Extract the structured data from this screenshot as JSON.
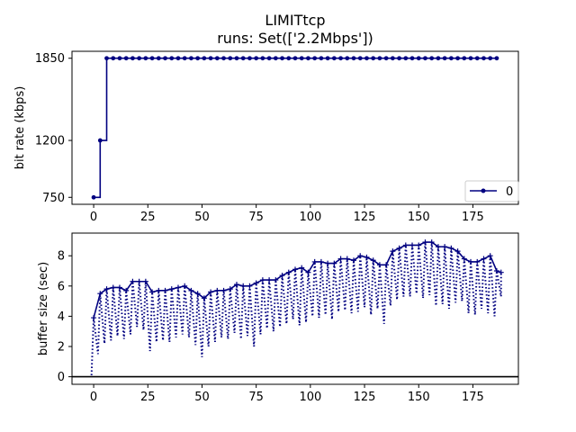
{
  "chart_data": [
    {
      "type": "line",
      "title": "LIMITtcp",
      "subtitle": "runs: Set(['2.2Mbps'])",
      "xlabel": "",
      "ylabel": "bit rate (kbps)",
      "xlim": [
        -10,
        196
      ],
      "ylim": [
        695,
        1905
      ],
      "xticks": [
        0,
        25,
        50,
        75,
        100,
        125,
        150,
        175
      ],
      "yticks": [
        750,
        1200,
        1850
      ],
      "grid": false,
      "legend": {
        "placement": "lower-right",
        "entries": [
          "0"
        ]
      },
      "step": true,
      "series": [
        {
          "name": "0",
          "color": "#000080",
          "x": [
            0,
            3,
            6,
            9,
            12,
            15,
            18,
            21,
            24,
            27,
            30,
            33,
            36,
            39,
            42,
            45,
            48,
            51,
            54,
            57,
            60,
            63,
            66,
            69,
            72,
            75,
            78,
            81,
            84,
            87,
            90,
            93,
            96,
            99,
            102,
            105,
            108,
            111,
            114,
            117,
            120,
            123,
            126,
            129,
            132,
            135,
            138,
            141,
            144,
            147,
            150,
            153,
            156,
            159,
            162,
            165,
            168,
            171,
            174,
            177,
            180,
            183,
            186
          ],
          "y": [
            750,
            1200,
            1850,
            1850,
            1850,
            1850,
            1850,
            1850,
            1850,
            1850,
            1850,
            1850,
            1850,
            1850,
            1850,
            1850,
            1850,
            1850,
            1850,
            1850,
            1850,
            1850,
            1850,
            1850,
            1850,
            1850,
            1850,
            1850,
            1850,
            1850,
            1850,
            1850,
            1850,
            1850,
            1850,
            1850,
            1850,
            1850,
            1850,
            1850,
            1850,
            1850,
            1850,
            1850,
            1850,
            1850,
            1850,
            1850,
            1850,
            1850,
            1850,
            1850,
            1850,
            1850,
            1850,
            1850,
            1850,
            1850,
            1850,
            1850,
            1850,
            1850,
            1850
          ]
        }
      ]
    },
    {
      "type": "line",
      "title": "",
      "xlabel": "",
      "ylabel": "buffer size (sec)",
      "xlim": [
        -10,
        196
      ],
      "ylim": [
        -0.5,
        9.5
      ],
      "xticks": [
        0,
        25,
        50,
        75,
        100,
        125,
        150,
        175
      ],
      "yticks": [
        0,
        2,
        4,
        6,
        8
      ],
      "grid": false,
      "hline": 0,
      "color": "#000080",
      "peaks": {
        "x": [
          0,
          3,
          6,
          9,
          12,
          15,
          18,
          21,
          24,
          27,
          30,
          33,
          36,
          39,
          42,
          45,
          48,
          51,
          54,
          57,
          60,
          63,
          66,
          69,
          72,
          75,
          78,
          81,
          84,
          87,
          90,
          93,
          96,
          99,
          102,
          105,
          108,
          111,
          114,
          117,
          120,
          123,
          126,
          129,
          132,
          135,
          138,
          141,
          144,
          147,
          150,
          153,
          156,
          159,
          162,
          165,
          168,
          171,
          174,
          177,
          180,
          183,
          186,
          188
        ],
        "y": [
          3.9,
          5.5,
          5.8,
          5.9,
          5.9,
          5.7,
          6.3,
          6.3,
          6.3,
          5.6,
          5.7,
          5.7,
          5.8,
          5.9,
          6.0,
          5.7,
          5.5,
          5.2,
          5.6,
          5.7,
          5.7,
          5.8,
          6.1,
          6.0,
          6.0,
          6.2,
          6.4,
          6.4,
          6.4,
          6.7,
          6.9,
          7.1,
          7.2,
          6.9,
          7.6,
          7.6,
          7.5,
          7.5,
          7.8,
          7.8,
          7.7,
          8.0,
          7.9,
          7.7,
          7.4,
          7.4,
          8.3,
          8.5,
          8.7,
          8.7,
          8.7,
          8.9,
          8.9,
          8.6,
          8.6,
          8.5,
          8.3,
          7.8,
          7.6,
          7.6,
          7.8,
          8.0,
          7.0,
          6.9
        ]
      },
      "troughs": {
        "x": [
          -1,
          2,
          5,
          8,
          11,
          14,
          17,
          20,
          23,
          26,
          29,
          32,
          35,
          38,
          41,
          44,
          47,
          50,
          53,
          56,
          59,
          62,
          65,
          68,
          71,
          74,
          77,
          80,
          83,
          86,
          89,
          92,
          95,
          98,
          101,
          104,
          107,
          110,
          113,
          116,
          119,
          122,
          125,
          128,
          131,
          134,
          137,
          140,
          143,
          146,
          149,
          152,
          155,
          158,
          161,
          164,
          167,
          170,
          173,
          176,
          179,
          182,
          185,
          188
        ],
        "y": [
          0.1,
          1.5,
          2.2,
          2.4,
          2.7,
          2.5,
          2.8,
          3.3,
          3.1,
          1.7,
          2.3,
          2.4,
          2.3,
          2.6,
          2.8,
          2.6,
          2.1,
          1.3,
          2.0,
          2.3,
          2.6,
          2.5,
          2.9,
          2.5,
          2.7,
          2.0,
          2.8,
          3.2,
          3.0,
          3.3,
          3.5,
          3.8,
          3.4,
          3.6,
          4.0,
          3.9,
          4.1,
          3.8,
          4.3,
          4.4,
          4.2,
          4.3,
          4.6,
          4.1,
          4.5,
          3.5,
          4.7,
          5.1,
          5.3,
          5.3,
          5.5,
          5.2,
          5.4,
          4.7,
          4.8,
          4.5,
          4.9,
          5.0,
          4.2,
          4.1,
          4.5,
          4.2,
          4.0,
          5.3
        ]
      }
    }
  ]
}
